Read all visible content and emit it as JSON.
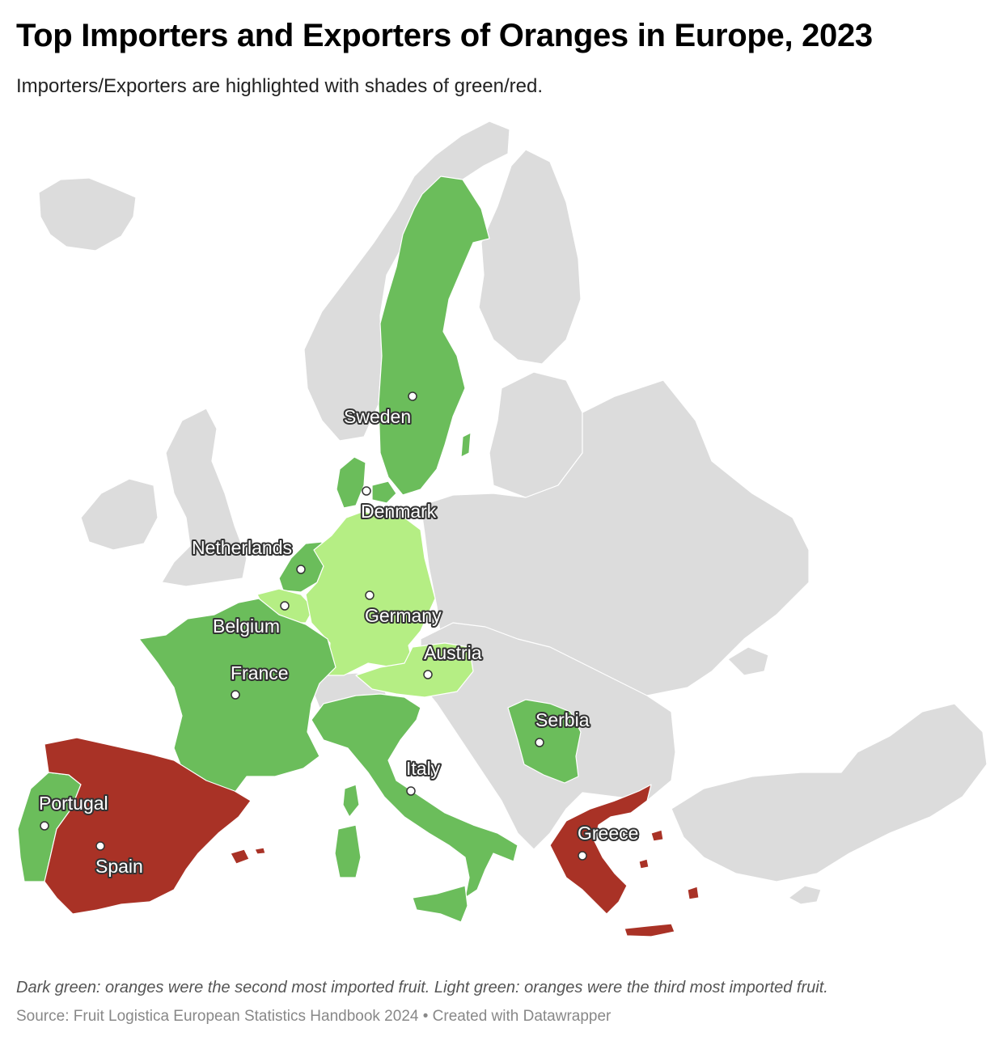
{
  "header": {
    "title": "Top Importers and Exporters of Oranges in Europe, 2023",
    "subtitle": "Importers/Exporters are highlighted with shades of green/red."
  },
  "footer": {
    "note": "Dark green: oranges were the second most imported fruit. Light green: oranges were the third most imported fruit.",
    "source": "Source: Fruit Logistica European Statistics Handbook 2024 • Created with Datawrapper"
  },
  "colors": {
    "dark_green": "#6bbd5b",
    "light_green": "#b5ee84",
    "red": "#a93226",
    "other": "#dcdcdc",
    "border": "#ffffff"
  },
  "countries": [
    {
      "name": "Sweden",
      "category": "dark_green"
    },
    {
      "name": "Denmark",
      "category": "dark_green"
    },
    {
      "name": "Netherlands",
      "category": "dark_green"
    },
    {
      "name": "Belgium",
      "category": "light_green"
    },
    {
      "name": "Germany",
      "category": "light_green"
    },
    {
      "name": "Austria",
      "category": "light_green"
    },
    {
      "name": "France",
      "category": "dark_green"
    },
    {
      "name": "Italy",
      "category": "dark_green"
    },
    {
      "name": "Serbia",
      "category": "dark_green"
    },
    {
      "name": "Portugal",
      "category": "dark_green"
    },
    {
      "name": "Spain",
      "category": "red"
    },
    {
      "name": "Greece",
      "category": "red"
    }
  ]
}
